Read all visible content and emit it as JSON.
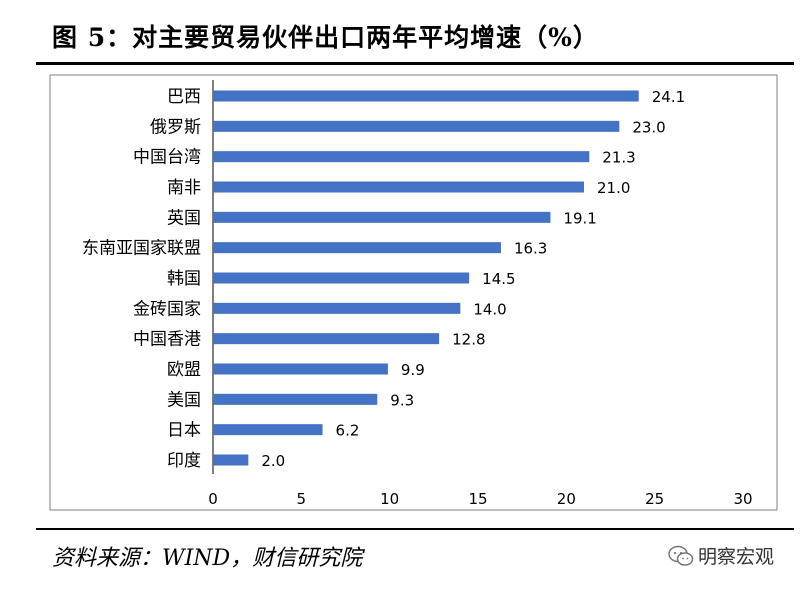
{
  "figure": {
    "title": "图 5：对主要贸易伙伴出口两年平均增速（%）",
    "source": "资料来源：WIND，财信研究院",
    "watermark": "明察宏观",
    "watermark_icon": "wechat-icon"
  },
  "colors": {
    "bar": "#4472C4",
    "axis": "#000000",
    "frame": "#808080"
  },
  "chart_data": {
    "type": "bar",
    "orientation": "horizontal",
    "categories": [
      "巴西",
      "俄罗斯",
      "中国台湾",
      "南非",
      "英国",
      "东南亚国家联盟",
      "韩国",
      "金砖国家",
      "中国香港",
      "欧盟",
      "美国",
      "日本",
      "印度"
    ],
    "values": [
      24.1,
      23.0,
      21.3,
      21.0,
      19.1,
      16.3,
      14.5,
      14.0,
      12.8,
      9.9,
      9.3,
      6.2,
      2.0
    ],
    "value_labels": [
      "24.1",
      "23.0",
      "21.3",
      "21.0",
      "19.1",
      "16.3",
      "14.5",
      "14.0",
      "12.8",
      "9.9",
      "9.3",
      "6.2",
      "2.0"
    ],
    "xlim": [
      0,
      30
    ],
    "xticks": [
      0,
      5,
      10,
      15,
      20,
      25,
      30
    ],
    "xlabel": "",
    "ylabel": "",
    "grid": false,
    "legend": "none"
  }
}
